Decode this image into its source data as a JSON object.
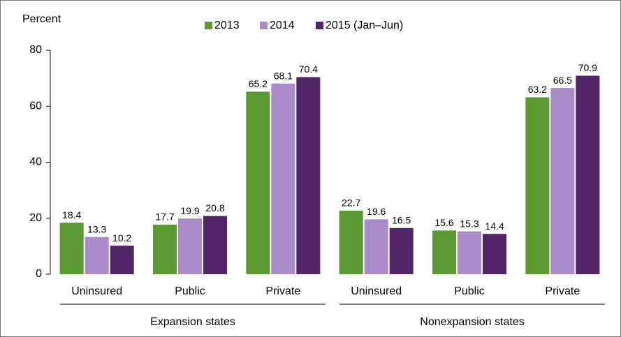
{
  "chart_data": {
    "type": "bar",
    "y_label": "Percent",
    "categories": [
      "Uninsured",
      "Public",
      "Private",
      "Uninsured",
      "Public",
      "Private"
    ],
    "groups": [
      "Expansion states",
      "Nonexpansion states"
    ],
    "series": [
      {
        "name": "2013",
        "color": "#5b9a32",
        "values": [
          18.4,
          17.7,
          65.2,
          22.7,
          15.6,
          63.2
        ]
      },
      {
        "name": "2014",
        "color": "#a98bc8",
        "values": [
          13.3,
          19.9,
          68.1,
          19.6,
          15.3,
          66.5
        ]
      },
      {
        "name": "2015 (Jan–Jun)",
        "color": "#522468",
        "values": [
          10.2,
          20.8,
          70.4,
          16.5,
          14.4,
          70.9
        ]
      }
    ],
    "ylim": [
      0,
      80
    ],
    "yticks": [
      0,
      20,
      40,
      60,
      80
    ]
  }
}
